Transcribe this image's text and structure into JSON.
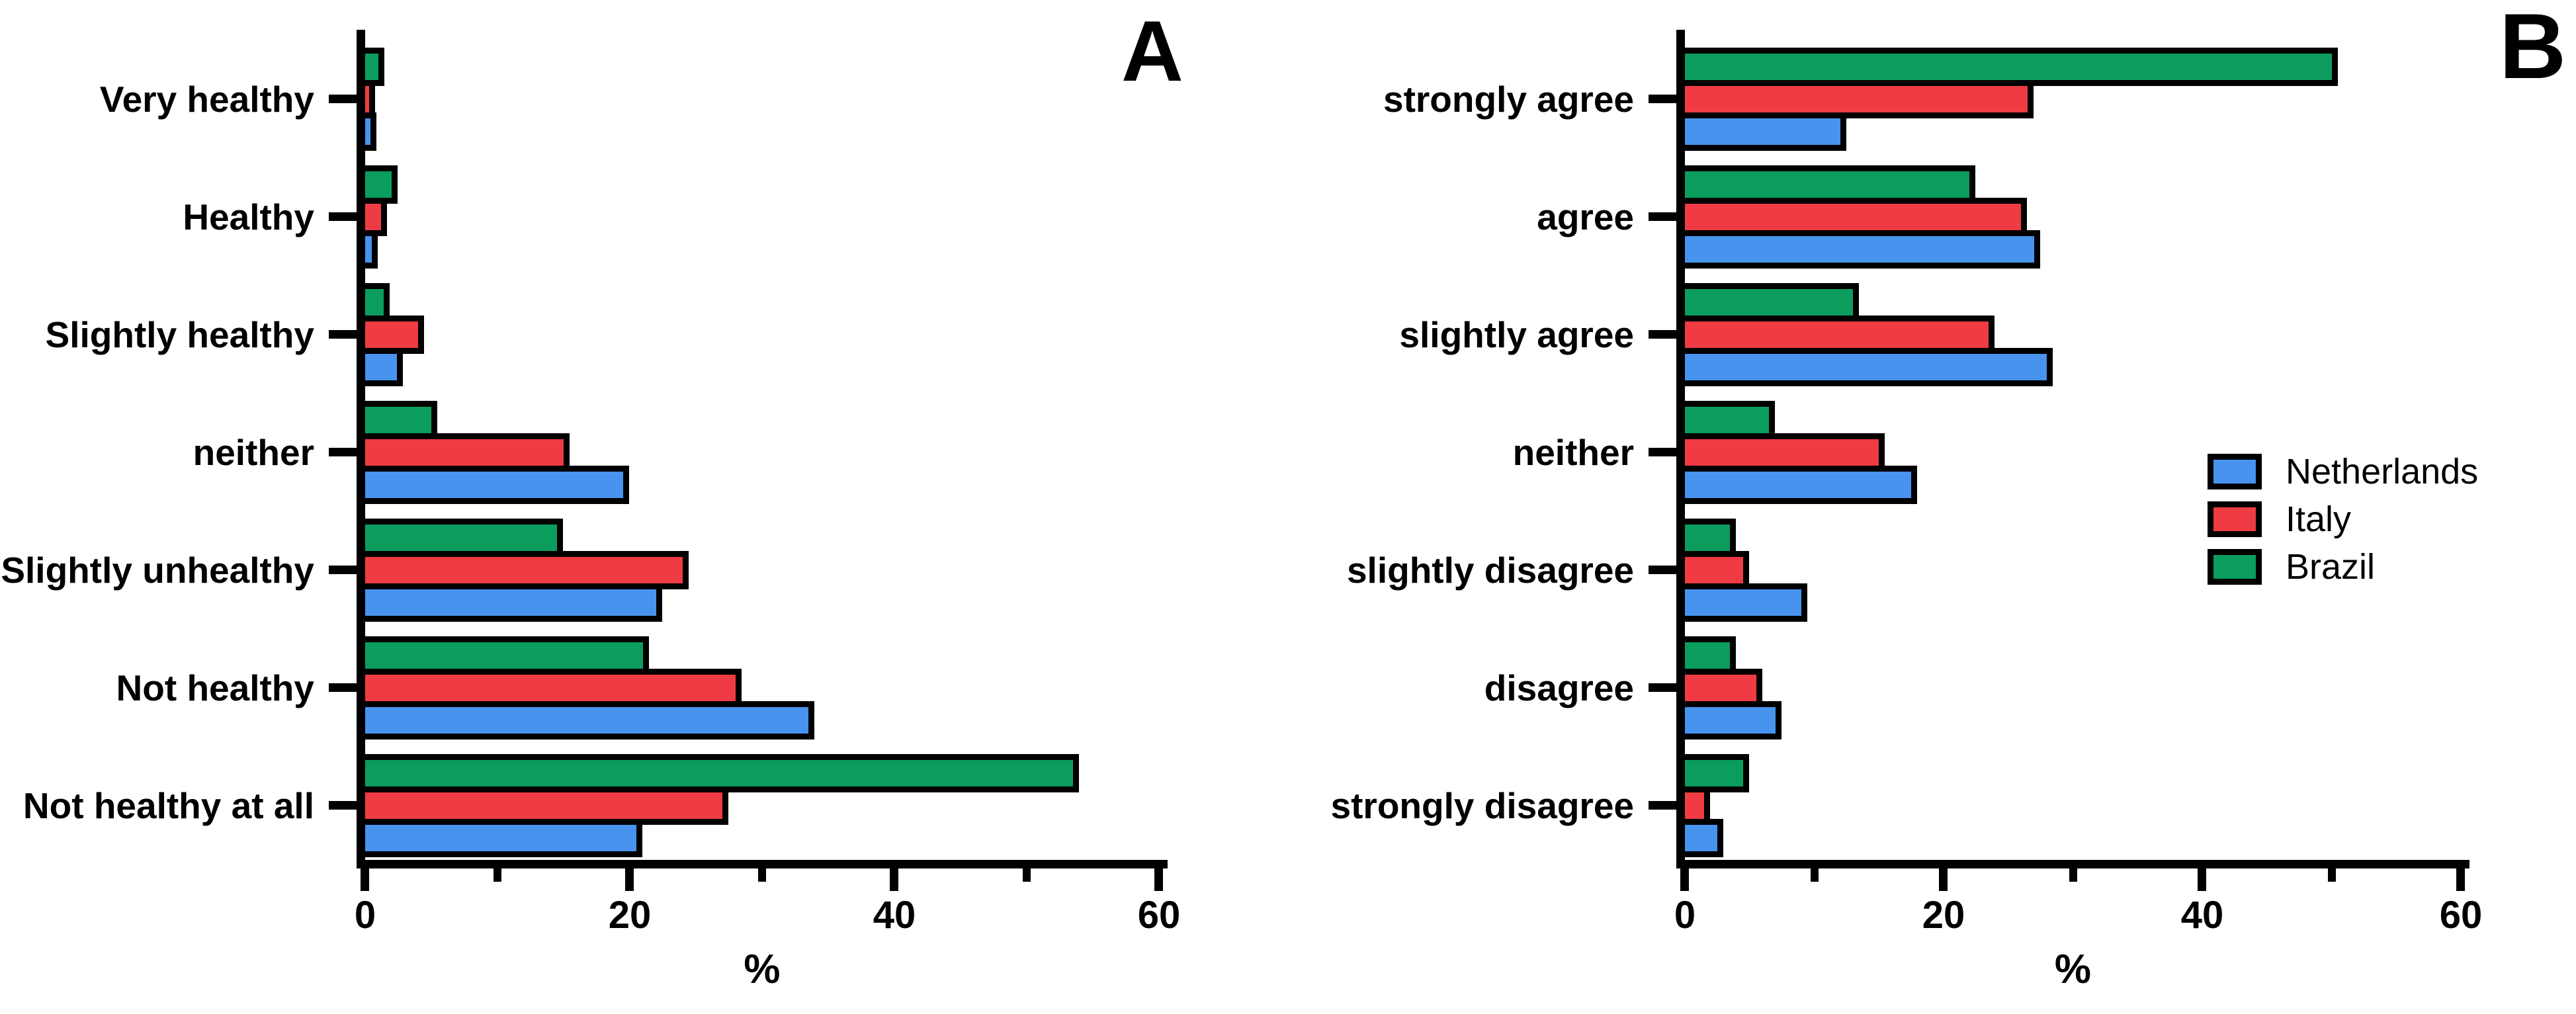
{
  "figure_background": "#ffffff",
  "series_colors": {
    "Netherlands": "#4893EE",
    "Italy": "#EF3B43",
    "Brazil": "#0B9D5D"
  },
  "legend": {
    "position": "right-middle-of-panel-B",
    "items": [
      "Netherlands",
      "Italy",
      "Brazil"
    ]
  },
  "chart_data": [
    {
      "id": "A",
      "panel_label": "A",
      "type": "bar",
      "orientation": "horizontal",
      "xlabel": "%",
      "xlim": [
        0,
        60
      ],
      "x_ticks": [
        0,
        20,
        40,
        60
      ],
      "x_tick_labels": [
        "0",
        "20",
        "40",
        "60"
      ],
      "x_minor_ticks": [
        10,
        30,
        50
      ],
      "grid": false,
      "bar_outline_color": "#000000",
      "categories": [
        "Very healthy",
        "Healthy",
        "Slightly healthy",
        "neither",
        "Slightly unhealthy",
        "Not healthy",
        "Not healthy at all"
      ],
      "series": [
        {
          "name": "Netherlands",
          "color": "#4893EE",
          "values": [
            0.4,
            0.5,
            2.4,
            19.5,
            22,
            33.5,
            20.5
          ]
        },
        {
          "name": "Italy",
          "color": "#EF3B43",
          "values": [
            0.3,
            1.2,
            4,
            15,
            24,
            28,
            27
          ]
        },
        {
          "name": "Brazil",
          "color": "#0B9D5D",
          "values": [
            1,
            2,
            1.4,
            5,
            14.5,
            21,
            53.5
          ]
        }
      ]
    },
    {
      "id": "B",
      "panel_label": "B",
      "type": "bar",
      "orientation": "horizontal",
      "xlabel": "%",
      "xlim": [
        0,
        60
      ],
      "x_ticks": [
        0,
        20,
        40,
        60
      ],
      "x_tick_labels": [
        "0",
        "20",
        "40",
        "60"
      ],
      "x_minor_ticks": [
        10,
        30,
        50
      ],
      "grid": false,
      "bar_outline_color": "#000000",
      "legend_position": "right",
      "categories": [
        "strongly agree",
        "agree",
        "slightly agree",
        "neither",
        "slightly disagree",
        "disagree",
        "strongly disagree"
      ],
      "series": [
        {
          "name": "Netherlands",
          "color": "#4893EE",
          "values": [
            12,
            27,
            28,
            17.5,
            9,
            7,
            2.5
          ]
        },
        {
          "name": "Italy",
          "color": "#EF3B43",
          "values": [
            26.5,
            26,
            23.5,
            15,
            4.5,
            5.5,
            1.5
          ]
        },
        {
          "name": "Brazil",
          "color": "#0B9D5D",
          "values": [
            50,
            22,
            13,
            6.5,
            3.5,
            3.5,
            4.5
          ]
        }
      ]
    }
  ]
}
